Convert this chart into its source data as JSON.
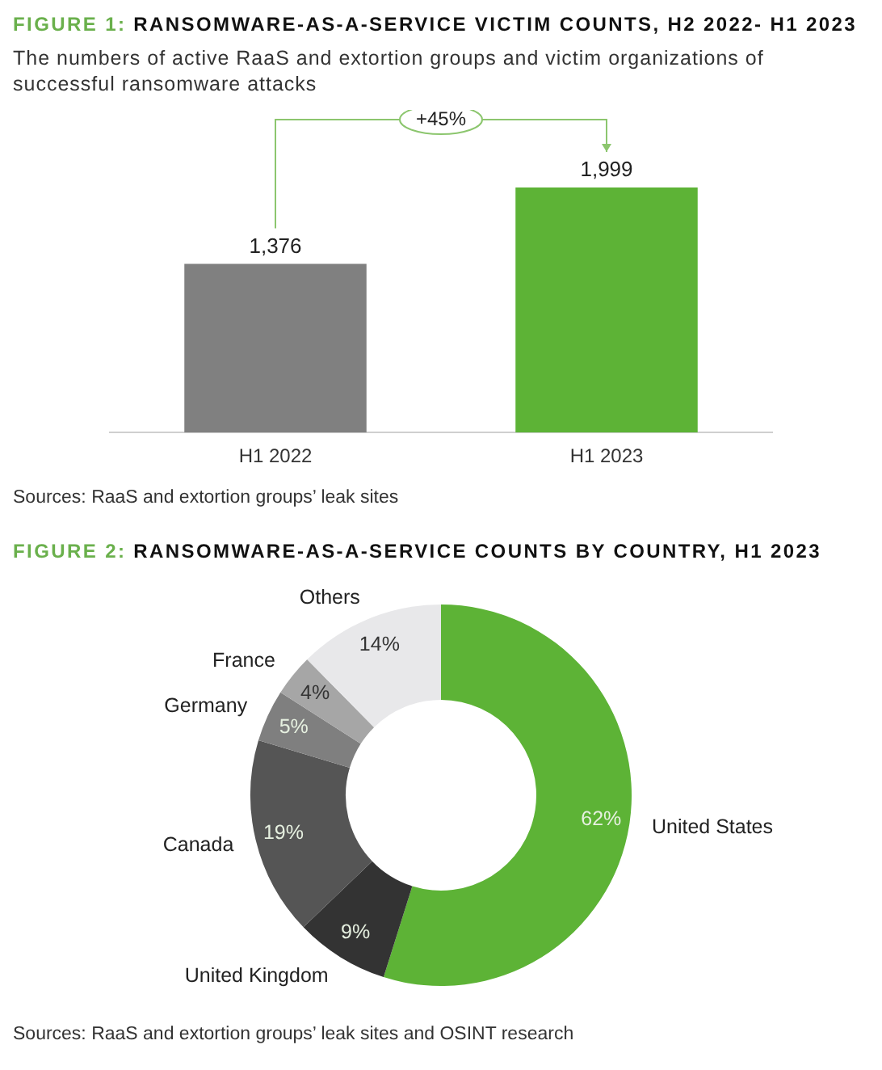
{
  "chart_data": [
    {
      "type": "bar",
      "title": "FIGURE 1: RANSOMWARE-AS-A-SERVICE VICTIM COUNTS, H2 2022- H1 2023",
      "subtitle": "The numbers of active RaaS and extortion groups and victim organizations of successful ransomware attacks",
      "categories": [
        "H1 2022",
        "H1 2023"
      ],
      "values": [
        1376,
        1999
      ],
      "colors": [
        "#808080",
        "#5db336"
      ],
      "value_labels": [
        "1,376",
        "1,999"
      ],
      "annotations": [
        "+45%",
        "Sources: RaaS and extortion groups’ leak sites"
      ]
    },
    {
      "type": "donut",
      "title": "FIGURE 2: RANSOMWARE-AS-A-SERVICE COUNTS BY COUNTRY, H1 2023",
      "categories": [
        "United States",
        "United Kingdom",
        "Canada",
        "Germany",
        "France",
        "Others"
      ],
      "values": [
        62,
        9,
        19,
        5,
        4,
        14
      ],
      "colors": [
        "#5db336",
        "#333333",
        "#555555",
        "#7f7f7f",
        "#a6a6a6",
        "#e8e8ea"
      ],
      "value_labels": [
        "62%",
        "9%",
        "19%",
        "5%",
        "4%",
        "14%"
      ],
      "annotations": [
        "Sources: RaaS and extortion groups’ leak sites and OSINT research"
      ]
    }
  ]
}
